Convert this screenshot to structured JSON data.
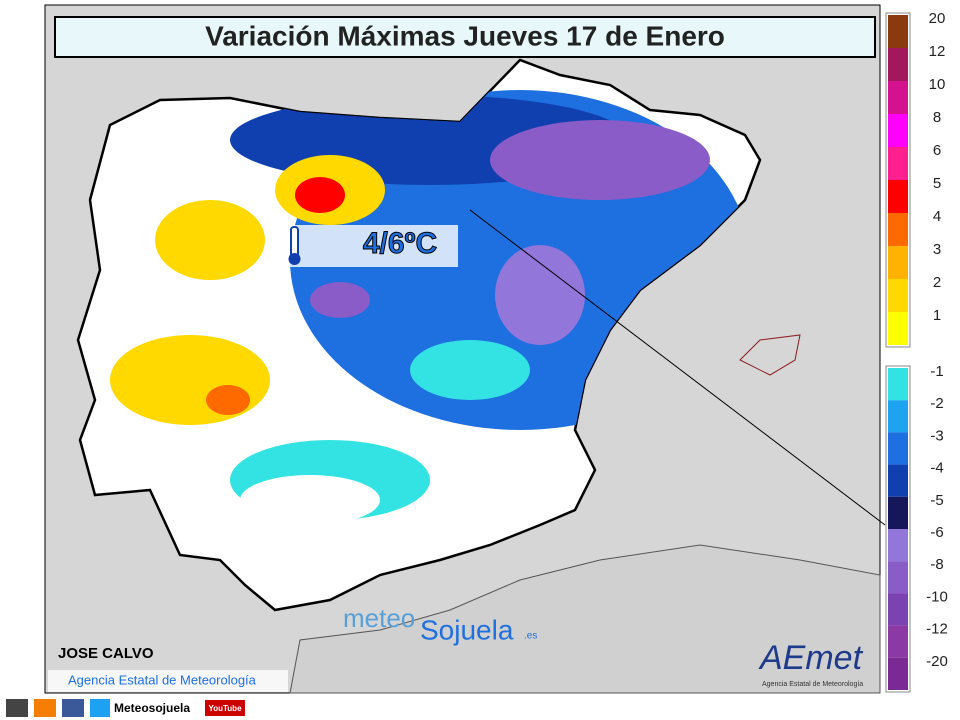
{
  "title": "Variación Máximas Jueves 17 de Enero",
  "annotation": "4/6ºC",
  "author": "JOSE CALVO",
  "credit": "Agencia Estatal de Meteorología",
  "watermark": {
    "left": "meteo",
    "right": "Sojuela",
    "suffix": ".es"
  },
  "logo": {
    "name": "AEmet",
    "subtitle": "Agencia Estatal de Meteorología"
  },
  "footer": {
    "handle": "Meteosojuela",
    "video": "YouTube"
  },
  "legend": {
    "warm": [
      {
        "label": "20",
        "color": "#8b3a10"
      },
      {
        "label": "12",
        "color": "#a3175c"
      },
      {
        "label": "10",
        "color": "#d4128f"
      },
      {
        "label": "8",
        "color": "#ff00ff"
      },
      {
        "label": "6",
        "color": "#ff1f8f"
      },
      {
        "label": "5",
        "color": "#ff0000"
      },
      {
        "label": "4",
        "color": "#ff6a00"
      },
      {
        "label": "3",
        "color": "#ffb300"
      },
      {
        "label": "2",
        "color": "#ffd900"
      },
      {
        "label": "1",
        "color": "#ffff00"
      }
    ],
    "cold": [
      {
        "label": "-1",
        "color": "#33e3e3"
      },
      {
        "label": "-2",
        "color": "#1ea3f0"
      },
      {
        "label": "-3",
        "color": "#1e6fe0"
      },
      {
        "label": "-4",
        "color": "#1040b0"
      },
      {
        "label": "-5",
        "color": "#16165a"
      },
      {
        "label": "-6",
        "color": "#9276da"
      },
      {
        "label": "-8",
        "color": "#8a5cc8"
      },
      {
        "label": "-10",
        "color": "#7b42b2"
      },
      {
        "label": "-12",
        "color": "#8a3aa2"
      },
      {
        "label": "-20",
        "color": "#7a2a92"
      }
    ]
  }
}
